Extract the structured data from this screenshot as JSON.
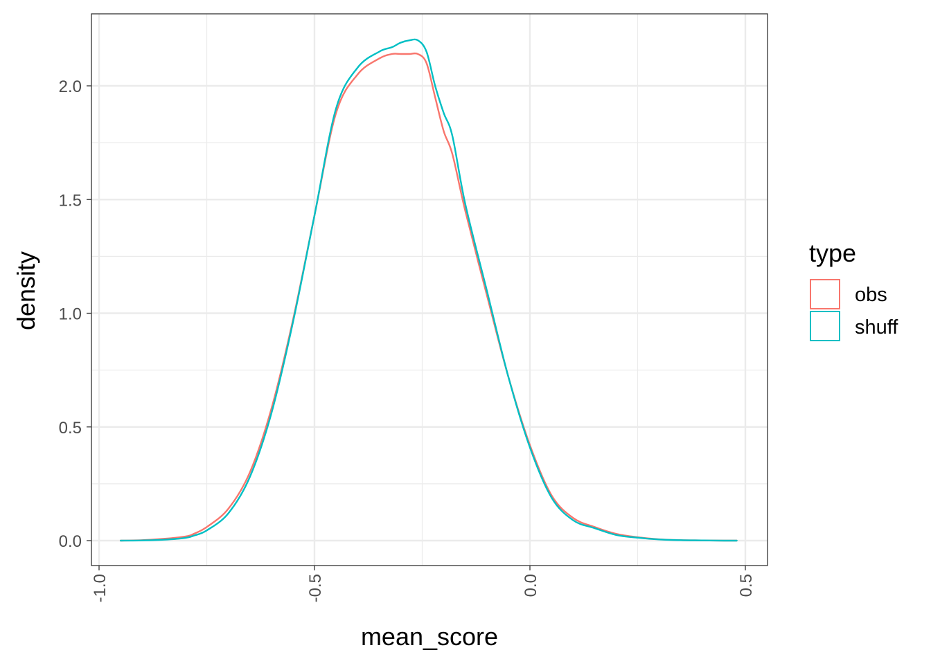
{
  "chart_data": {
    "type": "line",
    "xlabel": "mean_score",
    "ylabel": "density",
    "xlim": [
      -1.0,
      0.5
    ],
    "ylim": [
      0,
      2.2
    ],
    "x_ticks": [
      "-1.0",
      "-0.5",
      "0.0",
      "0.5"
    ],
    "y_ticks": [
      "0.0",
      "0.5",
      "1.0",
      "1.5",
      "2.0"
    ],
    "grid": true,
    "legend": {
      "title": "type",
      "placement": "right",
      "entries": [
        "obs",
        "shuff"
      ]
    },
    "series": [
      {
        "name": "obs",
        "color": "#F8766D",
        "x": [
          -0.95,
          -0.9,
          -0.85,
          -0.8,
          -0.78,
          -0.75,
          -0.7,
          -0.65,
          -0.6,
          -0.55,
          -0.5,
          -0.45,
          -0.4,
          -0.35,
          -0.32,
          -0.3,
          -0.28,
          -0.26,
          -0.24,
          -0.22,
          -0.2,
          -0.18,
          -0.15,
          -0.1,
          -0.05,
          0.0,
          0.05,
          0.1,
          0.15,
          0.2,
          0.25,
          0.3,
          0.35,
          0.4,
          0.45,
          0.48
        ],
        "values": [
          0.0,
          0.002,
          0.008,
          0.018,
          0.03,
          0.06,
          0.14,
          0.3,
          0.58,
          0.97,
          1.43,
          1.88,
          2.05,
          2.12,
          2.14,
          2.14,
          2.14,
          2.14,
          2.1,
          1.95,
          1.8,
          1.7,
          1.45,
          1.08,
          0.72,
          0.42,
          0.2,
          0.1,
          0.06,
          0.03,
          0.015,
          0.006,
          0.002,
          0.001,
          0.0,
          0.0
        ]
      },
      {
        "name": "shuff",
        "color": "#00BFC4",
        "x": [
          -0.95,
          -0.9,
          -0.85,
          -0.8,
          -0.78,
          -0.75,
          -0.7,
          -0.65,
          -0.6,
          -0.55,
          -0.5,
          -0.45,
          -0.4,
          -0.35,
          -0.32,
          -0.3,
          -0.28,
          -0.26,
          -0.24,
          -0.22,
          -0.2,
          -0.18,
          -0.15,
          -0.1,
          -0.05,
          0.0,
          0.05,
          0.1,
          0.15,
          0.2,
          0.25,
          0.3,
          0.35,
          0.4,
          0.45,
          0.48
        ],
        "values": [
          0.0,
          0.001,
          0.004,
          0.012,
          0.022,
          0.045,
          0.12,
          0.28,
          0.56,
          0.96,
          1.43,
          1.9,
          2.08,
          2.15,
          2.17,
          2.19,
          2.2,
          2.2,
          2.15,
          2.0,
          1.88,
          1.78,
          1.48,
          1.1,
          0.72,
          0.41,
          0.19,
          0.09,
          0.055,
          0.025,
          0.013,
          0.005,
          0.002,
          0.001,
          0.0,
          0.0
        ]
      }
    ]
  }
}
